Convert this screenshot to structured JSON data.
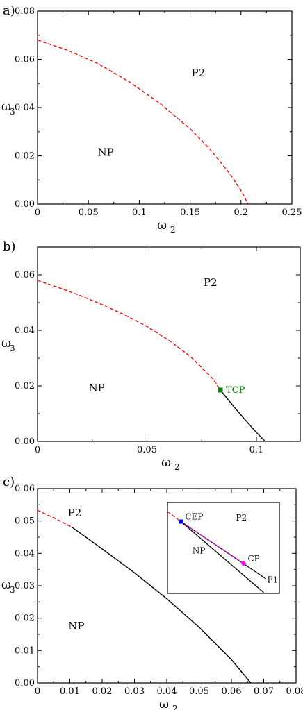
{
  "colors": {
    "first_order": "#ff0000",
    "second_order": "#000000",
    "tcp": "#008000",
    "cep": "#0000ff",
    "cp": "#ff00ff"
  },
  "chart_data": [
    {
      "type": "line",
      "panel_label": "a)",
      "xlabel": "ω",
      "xlabel_sub": "2",
      "ylabel": "ω",
      "ylabel_sub": "3",
      "xlim": [
        0,
        0.25
      ],
      "ylim": [
        0,
        0.08
      ],
      "x_ticks": [
        0,
        0.05,
        0.1,
        0.15,
        0.2,
        0.25
      ],
      "x_tick_labels": [
        "0",
        "0.05",
        "0.1",
        "0.15",
        "0.2",
        "0.25"
      ],
      "y_ticks": [
        0,
        0.02,
        0.04,
        0.06,
        0.08
      ],
      "y_tick_labels": [
        "0.00",
        "0.02",
        "0.04",
        "0.06",
        "0.08"
      ],
      "regions": [
        {
          "text": "P2",
          "x": 0.158,
          "y": 0.053
        },
        {
          "text": "NP",
          "x": 0.067,
          "y": 0.02
        }
      ],
      "series": [
        {
          "style": "dashed",
          "color": "#ff0000",
          "x": [
            0,
            0.03,
            0.06,
            0.09,
            0.12,
            0.15,
            0.17,
            0.19,
            0.2,
            0.207
          ],
          "y": [
            0.068,
            0.0637,
            0.0581,
            0.0507,
            0.0418,
            0.0312,
            0.0225,
            0.012,
            0.0055,
            0
          ]
        }
      ],
      "markers": []
    },
    {
      "type": "line",
      "panel_label": "b)",
      "xlabel": "ω",
      "xlabel_sub": "2",
      "ylabel": "ω",
      "ylabel_sub": "3",
      "xlim": [
        0,
        0.12
      ],
      "ylim": [
        0,
        0.07
      ],
      "x_ticks": [
        0,
        0.05,
        0.1
      ],
      "x_tick_labels": [
        "0",
        "0.05",
        "0.1"
      ],
      "y_ticks": [
        0,
        0.02,
        0.04,
        0.06
      ],
      "y_tick_labels": [
        "0.00",
        "0.02",
        "0.04",
        "0.06"
      ],
      "regions": [
        {
          "text": "P2",
          "x": 0.079,
          "y": 0.056
        },
        {
          "text": "NP",
          "x": 0.027,
          "y": 0.018
        }
      ],
      "series": [
        {
          "style": "dashed",
          "color": "#ff0000",
          "x": [
            0,
            0.01,
            0.02,
            0.03,
            0.04,
            0.05,
            0.06,
            0.07,
            0.08,
            0.0835
          ],
          "y": [
            0.058,
            0.0553,
            0.0524,
            0.0491,
            0.0455,
            0.0414,
            0.0364,
            0.0305,
            0.0226,
            0.0185
          ]
        },
        {
          "style": "solid",
          "color": "#000000",
          "x": [
            0.0835,
            0.09,
            0.095,
            0.1,
            0.104
          ],
          "y": [
            0.0185,
            0.0122,
            0.0076,
            0.0032,
            0
          ]
        }
      ],
      "markers": [
        {
          "label": "TCP",
          "x": 0.0835,
          "y": 0.0185,
          "shape": "square",
          "color": "#008000"
        }
      ]
    },
    {
      "type": "line",
      "panel_label": "c)",
      "xlabel": "ω",
      "xlabel_sub": "2",
      "ylabel": "ω",
      "ylabel_sub": "3",
      "xlim": [
        0,
        0.08
      ],
      "ylim": [
        0,
        0.06
      ],
      "x_ticks": [
        0,
        0.01,
        0.02,
        0.03,
        0.04,
        0.05,
        0.06,
        0.07,
        0.08
      ],
      "x_tick_labels": [
        "0",
        "0.01",
        "0.02",
        "0.03",
        "0.04",
        "0.05",
        "0.06",
        "0.07",
        "0.08"
      ],
      "y_ticks": [
        0,
        0.01,
        0.02,
        0.03,
        0.04,
        0.05,
        0.06
      ],
      "y_tick_labels": [
        "0.00",
        "0.01",
        "0.02",
        "0.03",
        "0.04",
        "0.05",
        "0.06"
      ],
      "regions": [
        {
          "text": "P2",
          "x": 0.0115,
          "y": 0.0514
        },
        {
          "text": "NP",
          "x": 0.012,
          "y": 0.0165
        }
      ],
      "series": [
        {
          "style": "dashed",
          "color": "#ff0000",
          "x": [
            0,
            0.005,
            0.0105
          ],
          "y": [
            0.0533,
            0.051,
            0.0482
          ]
        },
        {
          "style": "solid",
          "color": "#000000",
          "x": [
            0.0105,
            0.02,
            0.03,
            0.04,
            0.05,
            0.06,
            0.066
          ],
          "y": [
            0.0482,
            0.0414,
            0.034,
            0.026,
            0.0172,
            0.0072,
            0
          ]
        }
      ],
      "markers": [],
      "inset": {
        "regions": [
          {
            "text": "P2",
            "u": 0.66,
            "v": 0.8
          },
          {
            "text": "NP",
            "u": 0.28,
            "v": 0.44
          },
          {
            "text": "P1",
            "u": 0.94,
            "v": 0.12
          }
        ],
        "series": [
          {
            "style": "dashed",
            "color": "#ff0000",
            "u": [
              0.0,
              0.12
            ],
            "v": [
              0.9,
              0.79
            ]
          },
          {
            "style": "solid",
            "color": "#000000",
            "u": [
              0.12,
              0.88
            ],
            "v": [
              0.79,
              0.16
            ]
          },
          {
            "style": "solid",
            "color": "#000000",
            "u": [
              0.12,
              0.86
            ],
            "v": [
              0.79,
              0.01
            ]
          },
          {
            "style": "dashed",
            "color": "#ff00ff",
            "u": [
              0.12,
              0.68
            ],
            "v": [
              0.79,
              0.33
            ]
          }
        ],
        "markers": [
          {
            "label": "CEP",
            "u": 0.12,
            "v": 0.79,
            "shape": "square",
            "color": "#0000ff"
          },
          {
            "label": "CP",
            "u": 0.68,
            "v": 0.33,
            "shape": "circle",
            "color": "#ff00ff"
          }
        ]
      }
    }
  ]
}
